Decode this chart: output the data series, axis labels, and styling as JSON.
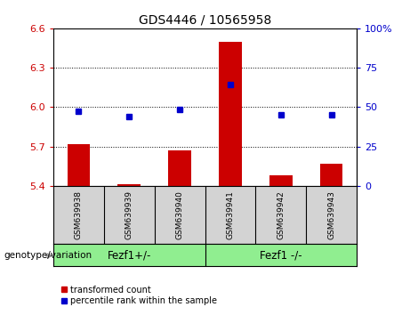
{
  "title": "GDS4446 / 10565958",
  "samples": [
    "GSM639938",
    "GSM639939",
    "GSM639940",
    "GSM639941",
    "GSM639942",
    "GSM639943"
  ],
  "red_values": [
    5.72,
    5.41,
    5.67,
    6.5,
    5.48,
    5.57
  ],
  "blue_values": [
    5.97,
    5.93,
    5.98,
    6.17,
    5.94,
    5.94
  ],
  "ymin": 5.4,
  "ymax": 6.6,
  "yticks_left": [
    5.4,
    5.7,
    6.0,
    6.3,
    6.6
  ],
  "yticks_right": [
    0,
    25,
    50,
    75,
    100
  ],
  "group1_label": "Fezf1+/-",
  "group2_label": "Fezf1 -/-",
  "group_label": "genotype/variation",
  "legend_red": "transformed count",
  "legend_blue": "percentile rank within the sample",
  "red_color": "#CC0000",
  "blue_color": "#0000CC",
  "bar_width": 0.45,
  "label_color_left": "#CC0000",
  "label_color_right": "#0000CC",
  "tick_fontsize": 8,
  "title_fontsize": 10,
  "grid_dotted_at": [
    5.7,
    6.0,
    6.3
  ],
  "gray_bg": "#D3D3D3",
  "green_bg": "#90EE90"
}
